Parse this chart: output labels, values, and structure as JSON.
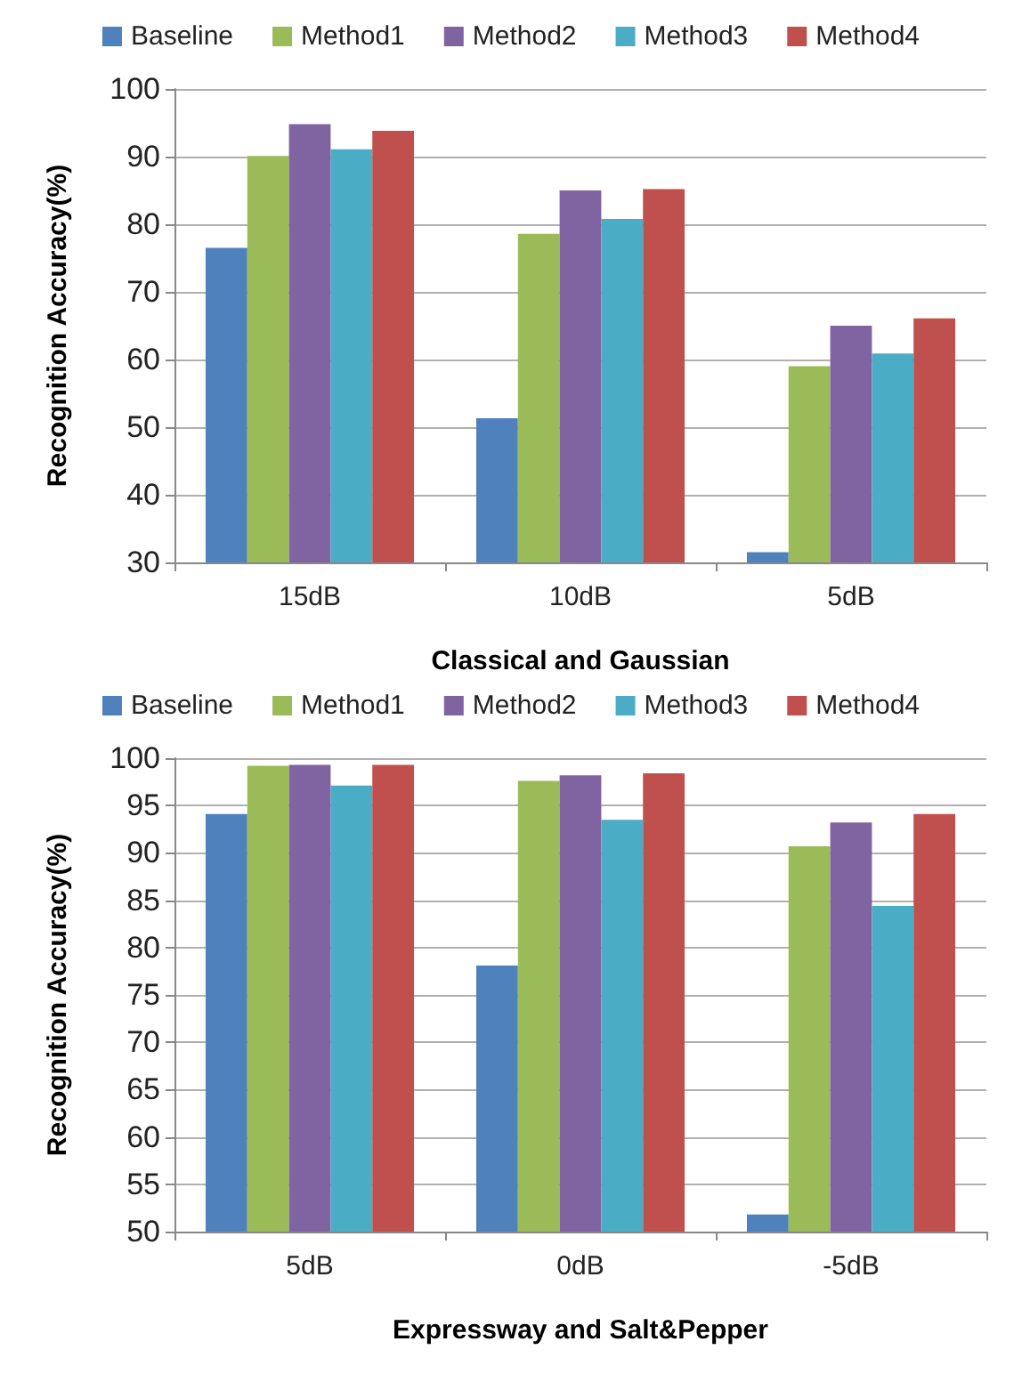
{
  "chart_data": [
    {
      "type": "bar",
      "xlabel": "Classical and Gaussian",
      "ylabel": "Recognition Accuracy(%)",
      "categories": [
        "15dB",
        "10dB",
        "5dB"
      ],
      "series": [
        {
          "name": "Baseline",
          "color": "#4f81bd",
          "values": [
            76.5,
            51.3,
            31.5
          ]
        },
        {
          "name": "Method1",
          "color": "#9bbb59",
          "values": [
            90.1,
            78.6,
            59.0
          ]
        },
        {
          "name": "Method2",
          "color": "#8064a2",
          "values": [
            94.8,
            85.0,
            65.0
          ]
        },
        {
          "name": "Method3",
          "color": "#4bacc6",
          "values": [
            91.1,
            80.8,
            60.9
          ]
        },
        {
          "name": "Method4",
          "color": "#c0504d",
          "values": [
            93.8,
            85.2,
            66.1
          ]
        }
      ],
      "ylim": [
        30,
        100
      ],
      "yticks": [
        30,
        40,
        50,
        60,
        70,
        80,
        90,
        100
      ],
      "grid": "y",
      "legend": "top"
    },
    {
      "type": "bar",
      "xlabel": "Expressway and Salt&Pepper",
      "ylabel": "Recognition Accuracy(%)",
      "categories": [
        "5dB",
        "0dB",
        "-5dB"
      ],
      "series": [
        {
          "name": "Baseline",
          "color": "#4f81bd",
          "values": [
            94.1,
            78.1,
            51.8
          ]
        },
        {
          "name": "Method1",
          "color": "#9bbb59",
          "values": [
            99.2,
            97.6,
            90.7
          ]
        },
        {
          "name": "Method2",
          "color": "#8064a2",
          "values": [
            99.3,
            98.2,
            93.2
          ]
        },
        {
          "name": "Method3",
          "color": "#4bacc6",
          "values": [
            97.1,
            93.5,
            84.4
          ]
        },
        {
          "name": "Method4",
          "color": "#c0504d",
          "values": [
            99.3,
            98.4,
            94.1
          ]
        }
      ],
      "ylim": [
        50,
        100
      ],
      "yticks": [
        50,
        55,
        60,
        65,
        70,
        75,
        80,
        85,
        90,
        95,
        100
      ],
      "grid": "y",
      "legend": "top"
    }
  ]
}
